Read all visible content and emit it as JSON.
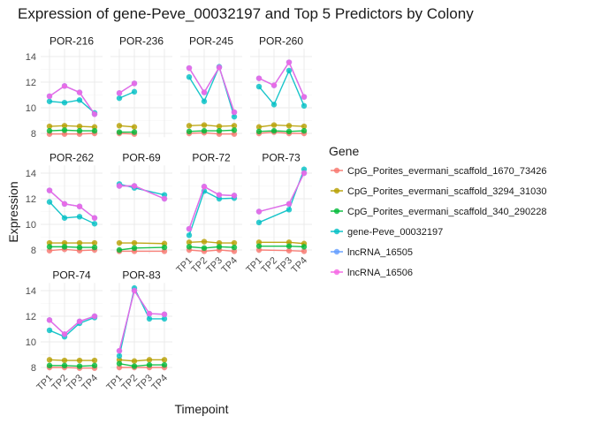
{
  "chart_data": {
    "type": "line",
    "title": "Expression of gene-Peve_00032197 and Top 5 Predictors by Colony",
    "xlabel": "Timepoint",
    "ylabel": "Expression",
    "x_categories": [
      "TP1",
      "TP2",
      "TP3",
      "TP4"
    ],
    "y_ticks": [
      8,
      10,
      12,
      14
    ],
    "ylim": [
      7.7,
      14.6
    ],
    "grid": true,
    "legend": {
      "title": "Gene",
      "position": "right"
    },
    "series_meta": [
      {
        "name": "CpG_Porites_evermani_scaffold_1670_73426",
        "color": "#F8766D"
      },
      {
        "name": "CpG_Porites_evermani_scaffold_3294_31030",
        "color": "#B79F00"
      },
      {
        "name": "CpG_Porites_evermani_scaffold_340_290228",
        "color": "#00BA38"
      },
      {
        "name": "gene-Peve_00032197",
        "color": "#00BFC4"
      },
      {
        "name": "lncRNA_16505",
        "color": "#619CFF"
      },
      {
        "name": "lncRNA_16506",
        "color": "#F564E3"
      }
    ],
    "facets": [
      {
        "colony": "POR-216",
        "values": [
          [
            7.95,
            7.95,
            7.95,
            8.0
          ],
          [
            8.55,
            8.6,
            8.55,
            8.5
          ],
          [
            8.2,
            8.25,
            8.2,
            8.2
          ],
          [
            10.5,
            10.4,
            10.6,
            9.6
          ],
          [
            10.9,
            11.7,
            11.2,
            9.5
          ],
          [
            10.9,
            11.7,
            11.2,
            9.5
          ]
        ]
      },
      {
        "colony": "POR-236",
        "values": [
          [
            8.0,
            7.95,
            null,
            null
          ],
          [
            8.6,
            8.5,
            null,
            null
          ],
          [
            8.1,
            8.1,
            null,
            null
          ],
          [
            10.75,
            11.25,
            null,
            null
          ],
          [
            11.15,
            11.9,
            null,
            null
          ],
          [
            11.15,
            11.9,
            null,
            null
          ]
        ]
      },
      {
        "colony": "POR-245",
        "values": [
          [
            8.0,
            8.05,
            7.95,
            7.95
          ],
          [
            8.6,
            8.65,
            8.55,
            8.6
          ],
          [
            8.15,
            8.2,
            8.2,
            8.25
          ],
          [
            12.4,
            10.5,
            13.2,
            9.3
          ],
          [
            13.1,
            11.2,
            13.15,
            9.65
          ],
          [
            13.1,
            11.2,
            13.15,
            9.65
          ]
        ]
      },
      {
        "colony": "POR-260",
        "values": [
          [
            8.0,
            8.1,
            8.0,
            8.0
          ],
          [
            8.5,
            8.65,
            8.6,
            8.55
          ],
          [
            8.15,
            8.2,
            8.15,
            8.2
          ],
          [
            11.65,
            10.25,
            12.9,
            10.15
          ],
          [
            12.3,
            11.75,
            13.55,
            10.85
          ],
          [
            12.3,
            11.75,
            13.55,
            10.85
          ]
        ]
      },
      {
        "colony": "POR-262",
        "values": [
          [
            7.95,
            8.05,
            7.95,
            8.0
          ],
          [
            8.55,
            8.55,
            8.55,
            8.55
          ],
          [
            8.25,
            8.25,
            8.2,
            8.2
          ],
          [
            11.75,
            10.5,
            10.6,
            10.05
          ],
          [
            12.65,
            11.6,
            11.4,
            10.5
          ],
          [
            12.65,
            11.6,
            11.4,
            10.5
          ]
        ]
      },
      {
        "colony": "POR-69",
        "values": [
          [
            7.9,
            7.9,
            null,
            7.9
          ],
          [
            8.55,
            8.55,
            null,
            8.5
          ],
          [
            8.0,
            8.15,
            null,
            8.2
          ],
          [
            13.15,
            12.85,
            null,
            12.3
          ],
          [
            13.0,
            13.0,
            null,
            12.0
          ],
          [
            13.0,
            13.0,
            null,
            12.0
          ]
        ]
      },
      {
        "colony": "POR-72",
        "values": [
          [
            8.0,
            7.9,
            8.0,
            7.9
          ],
          [
            8.6,
            8.65,
            8.55,
            8.55
          ],
          [
            8.25,
            8.15,
            8.25,
            8.2
          ],
          [
            9.15,
            12.6,
            12.0,
            12.05
          ],
          [
            9.65,
            12.95,
            12.3,
            12.25
          ],
          [
            9.65,
            12.95,
            12.3,
            12.25
          ]
        ]
      },
      {
        "colony": "POR-73",
        "values": [
          [
            8.0,
            null,
            7.95,
            7.9
          ],
          [
            8.6,
            null,
            8.6,
            8.5
          ],
          [
            8.3,
            null,
            8.3,
            8.25
          ],
          [
            10.15,
            null,
            11.15,
            14.3
          ],
          [
            11.0,
            null,
            11.6,
            14.0
          ],
          [
            11.0,
            null,
            11.6,
            14.0
          ]
        ]
      },
      {
        "colony": "POR-74",
        "values": [
          [
            8.0,
            8.0,
            7.95,
            7.95
          ],
          [
            8.6,
            8.55,
            8.55,
            8.55
          ],
          [
            8.15,
            8.15,
            8.1,
            8.15
          ],
          [
            10.9,
            10.4,
            11.45,
            11.9
          ],
          [
            11.7,
            10.6,
            11.6,
            12.0
          ],
          [
            11.7,
            10.6,
            11.6,
            12.0
          ]
        ]
      },
      {
        "colony": "POR-83",
        "values": [
          [
            8.0,
            8.0,
            8.0,
            8.0
          ],
          [
            8.6,
            8.5,
            8.6,
            8.6
          ],
          [
            8.3,
            8.1,
            8.2,
            8.2
          ],
          [
            8.9,
            14.2,
            11.8,
            11.8
          ],
          [
            9.3,
            14.0,
            12.2,
            12.15
          ],
          [
            9.3,
            14.0,
            12.2,
            12.15
          ]
        ]
      }
    ]
  }
}
